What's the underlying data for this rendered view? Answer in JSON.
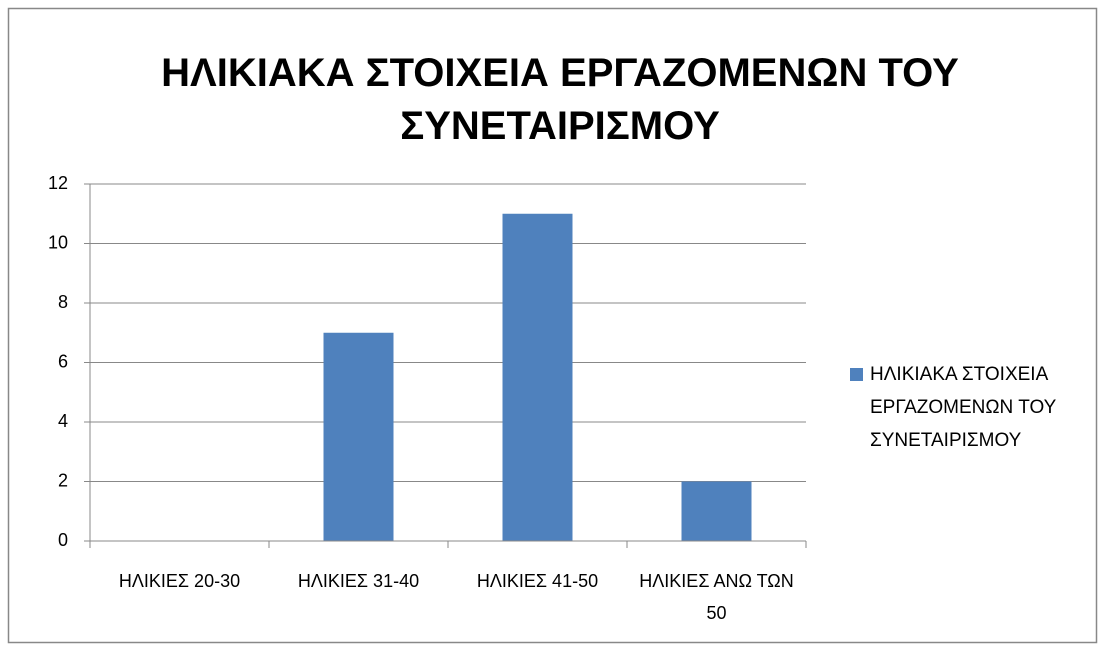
{
  "chart_data": {
    "type": "bar",
    "title": "ΗΛΙΚΙΑΚΑ ΣΤΟΙΧΕΙΑ ΕΡΓΑΖΟΜΕΝΩΝ ΤΟΥ ΣΥΝΕΤΑΙΡΙΣΜΟΥ",
    "categories": [
      "ΗΛΙΚΙΕΣ 20-30",
      "ΗΛΙΚΙΕΣ 31-40",
      "ΗΛΙΚΙΕΣ 41-50",
      "ΗΛΙΚΙΕΣ ΑΝΩ ΤΩΝ 50"
    ],
    "series": [
      {
        "name": "ΗΛΙΚΙΑΚΑ ΣΤΟΙΧΕΙΑ ΕΡΓΑΖΟΜΕΝΩΝ ΤΟΥ ΣΥΝΕΤΑΙΡΙΣΜΟΥ",
        "color": "#4f81bd",
        "values": [
          0,
          7,
          11,
          2
        ]
      }
    ],
    "ylim": [
      0,
      12
    ],
    "yticks": [
      0,
      2,
      4,
      6,
      8,
      10,
      12
    ],
    "grid": true,
    "legend": "right"
  }
}
